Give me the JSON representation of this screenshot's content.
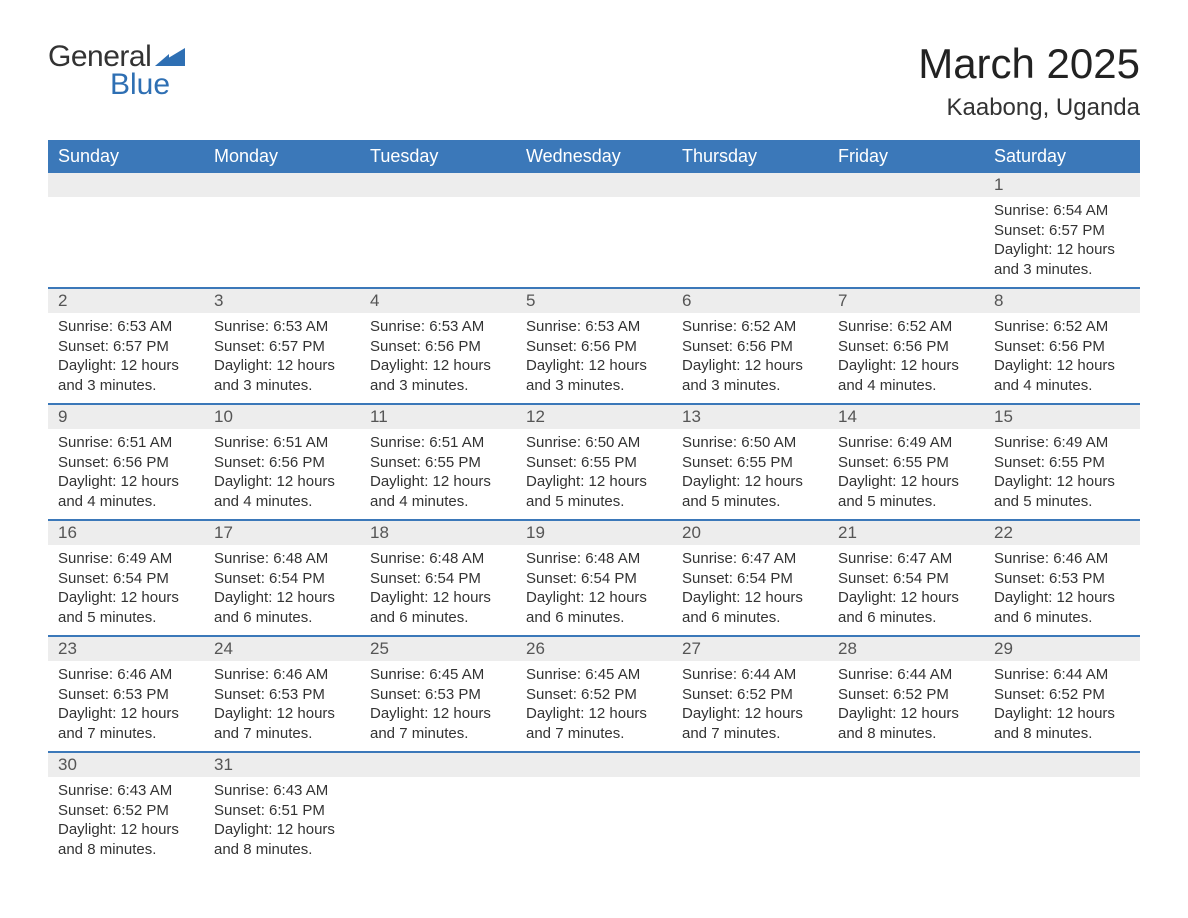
{
  "brand": {
    "general": "General",
    "blue": "Blue",
    "triangle_color": "#2e6fb3"
  },
  "title": "March 2025",
  "location": "Kaabong, Uganda",
  "colors": {
    "header_bg": "#3b78b9",
    "header_text": "#ffffff",
    "daynum_bg": "#ededed",
    "row_border": "#3b78b9",
    "text": "#333333"
  },
  "weekdays": [
    "Sunday",
    "Monday",
    "Tuesday",
    "Wednesday",
    "Thursday",
    "Friday",
    "Saturday"
  ],
  "weeks": [
    [
      null,
      null,
      null,
      null,
      null,
      null,
      {
        "n": "1",
        "sunrise": "Sunrise: 6:54 AM",
        "sunset": "Sunset: 6:57 PM",
        "daylight": "Daylight: 12 hours and 3 minutes."
      }
    ],
    [
      {
        "n": "2",
        "sunrise": "Sunrise: 6:53 AM",
        "sunset": "Sunset: 6:57 PM",
        "daylight": "Daylight: 12 hours and 3 minutes."
      },
      {
        "n": "3",
        "sunrise": "Sunrise: 6:53 AM",
        "sunset": "Sunset: 6:57 PM",
        "daylight": "Daylight: 12 hours and 3 minutes."
      },
      {
        "n": "4",
        "sunrise": "Sunrise: 6:53 AM",
        "sunset": "Sunset: 6:56 PM",
        "daylight": "Daylight: 12 hours and 3 minutes."
      },
      {
        "n": "5",
        "sunrise": "Sunrise: 6:53 AM",
        "sunset": "Sunset: 6:56 PM",
        "daylight": "Daylight: 12 hours and 3 minutes."
      },
      {
        "n": "6",
        "sunrise": "Sunrise: 6:52 AM",
        "sunset": "Sunset: 6:56 PM",
        "daylight": "Daylight: 12 hours and 3 minutes."
      },
      {
        "n": "7",
        "sunrise": "Sunrise: 6:52 AM",
        "sunset": "Sunset: 6:56 PM",
        "daylight": "Daylight: 12 hours and 4 minutes."
      },
      {
        "n": "8",
        "sunrise": "Sunrise: 6:52 AM",
        "sunset": "Sunset: 6:56 PM",
        "daylight": "Daylight: 12 hours and 4 minutes."
      }
    ],
    [
      {
        "n": "9",
        "sunrise": "Sunrise: 6:51 AM",
        "sunset": "Sunset: 6:56 PM",
        "daylight": "Daylight: 12 hours and 4 minutes."
      },
      {
        "n": "10",
        "sunrise": "Sunrise: 6:51 AM",
        "sunset": "Sunset: 6:56 PM",
        "daylight": "Daylight: 12 hours and 4 minutes."
      },
      {
        "n": "11",
        "sunrise": "Sunrise: 6:51 AM",
        "sunset": "Sunset: 6:55 PM",
        "daylight": "Daylight: 12 hours and 4 minutes."
      },
      {
        "n": "12",
        "sunrise": "Sunrise: 6:50 AM",
        "sunset": "Sunset: 6:55 PM",
        "daylight": "Daylight: 12 hours and 5 minutes."
      },
      {
        "n": "13",
        "sunrise": "Sunrise: 6:50 AM",
        "sunset": "Sunset: 6:55 PM",
        "daylight": "Daylight: 12 hours and 5 minutes."
      },
      {
        "n": "14",
        "sunrise": "Sunrise: 6:49 AM",
        "sunset": "Sunset: 6:55 PM",
        "daylight": "Daylight: 12 hours and 5 minutes."
      },
      {
        "n": "15",
        "sunrise": "Sunrise: 6:49 AM",
        "sunset": "Sunset: 6:55 PM",
        "daylight": "Daylight: 12 hours and 5 minutes."
      }
    ],
    [
      {
        "n": "16",
        "sunrise": "Sunrise: 6:49 AM",
        "sunset": "Sunset: 6:54 PM",
        "daylight": "Daylight: 12 hours and 5 minutes."
      },
      {
        "n": "17",
        "sunrise": "Sunrise: 6:48 AM",
        "sunset": "Sunset: 6:54 PM",
        "daylight": "Daylight: 12 hours and 6 minutes."
      },
      {
        "n": "18",
        "sunrise": "Sunrise: 6:48 AM",
        "sunset": "Sunset: 6:54 PM",
        "daylight": "Daylight: 12 hours and 6 minutes."
      },
      {
        "n": "19",
        "sunrise": "Sunrise: 6:48 AM",
        "sunset": "Sunset: 6:54 PM",
        "daylight": "Daylight: 12 hours and 6 minutes."
      },
      {
        "n": "20",
        "sunrise": "Sunrise: 6:47 AM",
        "sunset": "Sunset: 6:54 PM",
        "daylight": "Daylight: 12 hours and 6 minutes."
      },
      {
        "n": "21",
        "sunrise": "Sunrise: 6:47 AM",
        "sunset": "Sunset: 6:54 PM",
        "daylight": "Daylight: 12 hours and 6 minutes."
      },
      {
        "n": "22",
        "sunrise": "Sunrise: 6:46 AM",
        "sunset": "Sunset: 6:53 PM",
        "daylight": "Daylight: 12 hours and 6 minutes."
      }
    ],
    [
      {
        "n": "23",
        "sunrise": "Sunrise: 6:46 AM",
        "sunset": "Sunset: 6:53 PM",
        "daylight": "Daylight: 12 hours and 7 minutes."
      },
      {
        "n": "24",
        "sunrise": "Sunrise: 6:46 AM",
        "sunset": "Sunset: 6:53 PM",
        "daylight": "Daylight: 12 hours and 7 minutes."
      },
      {
        "n": "25",
        "sunrise": "Sunrise: 6:45 AM",
        "sunset": "Sunset: 6:53 PM",
        "daylight": "Daylight: 12 hours and 7 minutes."
      },
      {
        "n": "26",
        "sunrise": "Sunrise: 6:45 AM",
        "sunset": "Sunset: 6:52 PM",
        "daylight": "Daylight: 12 hours and 7 minutes."
      },
      {
        "n": "27",
        "sunrise": "Sunrise: 6:44 AM",
        "sunset": "Sunset: 6:52 PM",
        "daylight": "Daylight: 12 hours and 7 minutes."
      },
      {
        "n": "28",
        "sunrise": "Sunrise: 6:44 AM",
        "sunset": "Sunset: 6:52 PM",
        "daylight": "Daylight: 12 hours and 8 minutes."
      },
      {
        "n": "29",
        "sunrise": "Sunrise: 6:44 AM",
        "sunset": "Sunset: 6:52 PM",
        "daylight": "Daylight: 12 hours and 8 minutes."
      }
    ],
    [
      {
        "n": "30",
        "sunrise": "Sunrise: 6:43 AM",
        "sunset": "Sunset: 6:52 PM",
        "daylight": "Daylight: 12 hours and 8 minutes."
      },
      {
        "n": "31",
        "sunrise": "Sunrise: 6:43 AM",
        "sunset": "Sunset: 6:51 PM",
        "daylight": "Daylight: 12 hours and 8 minutes."
      },
      null,
      null,
      null,
      null,
      null
    ]
  ]
}
